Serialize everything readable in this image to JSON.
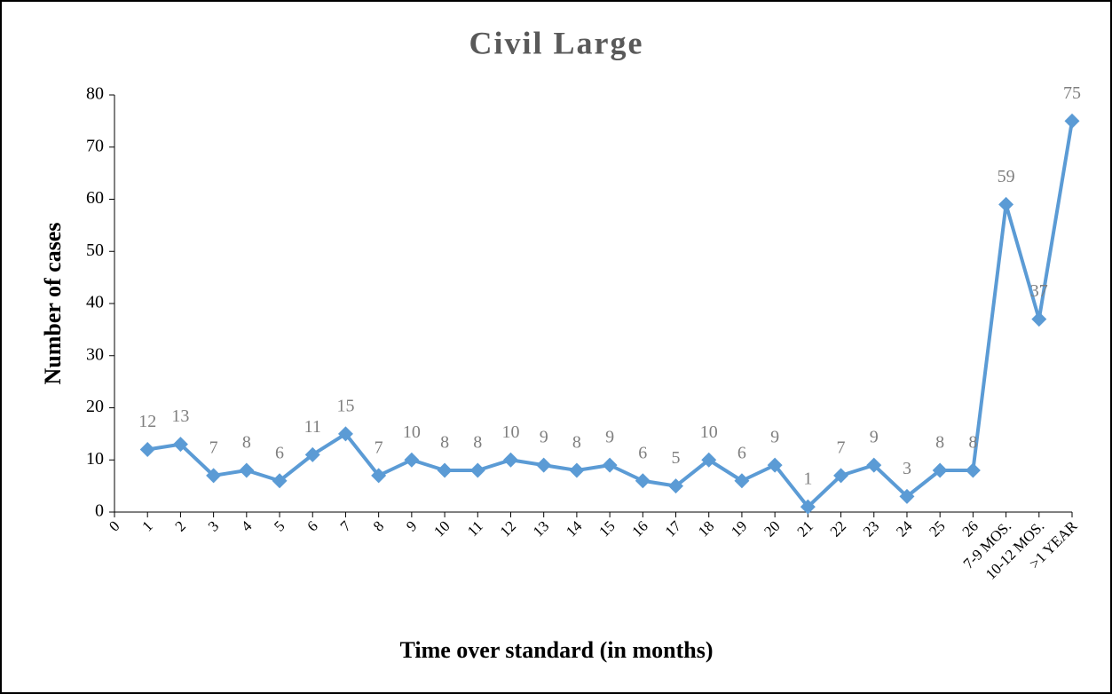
{
  "chart_data": {
    "type": "line",
    "title": "Civil Large",
    "x_label": "Time over standard (in months)",
    "y_label": "Number of cases",
    "categories": [
      "0",
      "1",
      "2",
      "3",
      "4",
      "5",
      "6",
      "7",
      "8",
      "9",
      "10",
      "11",
      "12",
      "13",
      "14",
      "15",
      "16",
      "17",
      "18",
      "19",
      "20",
      "21",
      "22",
      "23",
      "24",
      "25",
      "26",
      "7-9 MOS.",
      "10-12 MOS.",
      ">1 YEAR"
    ],
    "series": [
      {
        "name": "Number of cases",
        "color": "#5b9bd5",
        "values": [
          null,
          12,
          13,
          7,
          8,
          6,
          11,
          15,
          7,
          10,
          8,
          8,
          10,
          9,
          8,
          9,
          6,
          5,
          10,
          6,
          9,
          1,
          7,
          9,
          3,
          8,
          8,
          59,
          37,
          75
        ]
      }
    ],
    "ylim": [
      0,
      80
    ],
    "yticks": [
      0,
      10,
      20,
      30,
      40,
      50,
      60,
      70,
      80
    ],
    "grid": false,
    "data_labels": true
  }
}
